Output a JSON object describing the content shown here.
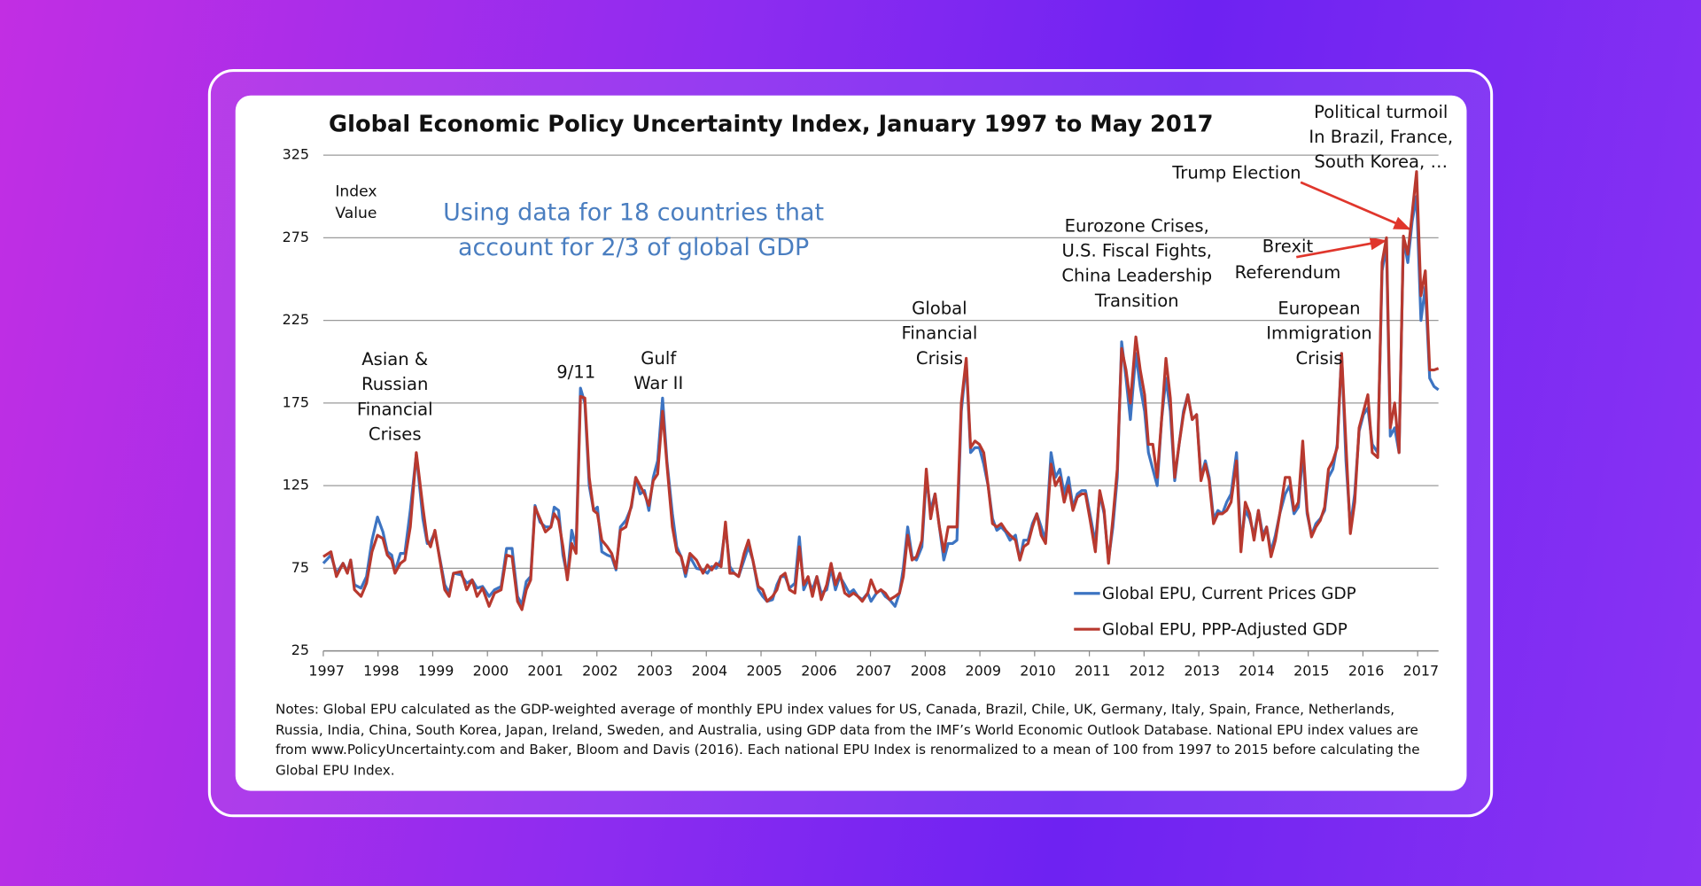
{
  "chart_data": {
    "type": "line",
    "title": "Global Economic Policy Uncertainty Index, January 1997 to May 2017",
    "subtitle": [
      "Using data for 18 countries that",
      "account for 2/3 of global GDP"
    ],
    "y_label": [
      "Index",
      "Value"
    ],
    "xlim": [
      1997,
      2017.38
    ],
    "xticks": [
      1997,
      1998,
      1999,
      2000,
      2001,
      2002,
      2003,
      2004,
      2005,
      2006,
      2007,
      2008,
      2009,
      2010,
      2011,
      2012,
      2013,
      2014,
      2015,
      2016,
      2017
    ],
    "ylim": [
      25,
      325
    ],
    "yticks": [
      25,
      75,
      125,
      175,
      225,
      275,
      325
    ],
    "grid": true,
    "legend": "lower right",
    "x": [
      1997.0,
      1997.14,
      1997.24,
      1997.36,
      1997.44,
      1997.5,
      1997.57,
      1997.69,
      1997.79,
      1997.89,
      1997.99,
      1998.09,
      1998.17,
      1998.25,
      1998.31,
      1998.41,
      1998.49,
      1998.59,
      1998.7,
      1998.82,
      1998.9,
      1998.96,
      1999.04,
      1999.22,
      1999.3,
      1999.38,
      1999.52,
      1999.62,
      1999.72,
      1999.81,
      1999.91,
      2000.03,
      2000.13,
      2000.25,
      2000.35,
      2000.45,
      2000.55,
      2000.63,
      2000.71,
      2000.79,
      2000.87,
      2000.96,
      2001.06,
      2001.16,
      2001.22,
      2001.3,
      2001.38,
      2001.46,
      2001.54,
      2001.62,
      2001.7,
      2001.78,
      2001.86,
      2001.94,
      2002.01,
      2002.09,
      2002.19,
      2002.27,
      2002.35,
      2002.43,
      2002.53,
      2002.63,
      2002.71,
      2002.79,
      2002.87,
      2002.95,
      2003.03,
      2003.11,
      2003.2,
      2003.28,
      2003.38,
      2003.46,
      2003.54,
      2003.62,
      2003.7,
      2003.82,
      2003.94,
      2004.02,
      2004.1,
      2004.18,
      2004.27,
      2004.35,
      2004.43,
      2004.51,
      2004.59,
      2004.69,
      2004.77,
      2004.85,
      2004.95,
      2005.03,
      2005.11,
      2005.21,
      2005.29,
      2005.36,
      2005.44,
      2005.52,
      2005.62,
      2005.7,
      2005.78,
      2005.86,
      2005.94,
      2006.02,
      2006.1,
      2006.2,
      2006.28,
      2006.36,
      2006.44,
      2006.53,
      2006.61,
      2006.69,
      2006.77,
      2006.85,
      2006.95,
      2007.01,
      2007.11,
      2007.19,
      2007.27,
      2007.35,
      2007.45,
      2007.53,
      2007.6,
      2007.68,
      2007.76,
      2007.84,
      2007.94,
      2008.02,
      2008.1,
      2008.18,
      2008.26,
      2008.34,
      2008.42,
      2008.5,
      2008.58,
      2008.66,
      2008.75,
      2008.83,
      2008.91,
      2008.99,
      2009.07,
      2009.15,
      2009.23,
      2009.31,
      2009.39,
      2009.47,
      2009.55,
      2009.65,
      2009.73,
      2009.8,
      2009.88,
      2009.96,
      2010.04,
      2010.12,
      2010.2,
      2010.3,
      2010.38,
      2010.46,
      2010.54,
      2010.62,
      2010.7,
      2010.78,
      2010.86,
      2010.93,
      2011.01,
      2011.11,
      2011.19,
      2011.27,
      2011.35,
      2011.43,
      2011.51,
      2011.59,
      2011.67,
      2011.75,
      2011.85,
      2011.93,
      2012.01,
      2012.08,
      2012.16,
      2012.24,
      2012.32,
      2012.4,
      2012.48,
      2012.56,
      2012.64,
      2012.72,
      2012.8,
      2012.88,
      2012.96,
      2013.04,
      2013.12,
      2013.19,
      2013.27,
      2013.35,
      2013.43,
      2013.51,
      2013.59,
      2013.69,
      2013.77,
      2013.85,
      2013.93,
      2014.01,
      2014.09,
      2014.17,
      2014.24,
      2014.32,
      2014.4,
      2014.48,
      2014.58,
      2014.66,
      2014.74,
      2014.82,
      2014.9,
      2014.98,
      2015.06,
      2015.14,
      2015.22,
      2015.3,
      2015.37,
      2015.45,
      2015.53,
      2015.61,
      2015.69,
      2015.77,
      2015.85,
      2015.93,
      2016.01,
      2016.09,
      2016.17,
      2016.27,
      2016.35,
      2016.43,
      2016.5,
      2016.58,
      2016.66,
      2016.74,
      2016.82,
      2016.9,
      2016.98,
      2017.06,
      2017.14,
      2017.22,
      2017.3,
      2017.38
    ],
    "series": [
      {
        "name": "Global EPU, Current Prices GDP",
        "color": "#3d74c2",
        "values": [
          78,
          83,
          72,
          78,
          73,
          80,
          65,
          63,
          70,
          92,
          106,
          97,
          85,
          83,
          73,
          84,
          84,
          110,
          144,
          105,
          90,
          91,
          97,
          65,
          60,
          72,
          71,
          66,
          68,
          63,
          64,
          58,
          62,
          64,
          87,
          87,
          58,
          53,
          67,
          70,
          113,
          103,
          100,
          100,
          112,
          110,
          83,
          70,
          98,
          88,
          184,
          175,
          125,
          110,
          112,
          85,
          83,
          82,
          74,
          100,
          104,
          112,
          130,
          120,
          122,
          110,
          130,
          140,
          178,
          140,
          108,
          88,
          82,
          70,
          82,
          75,
          74,
          72,
          76,
          75,
          80,
          100,
          76,
          72,
          70,
          80,
          88,
          80,
          62,
          58,
          55,
          56,
          65,
          70,
          70,
          63,
          66,
          94,
          62,
          68,
          62,
          70,
          60,
          62,
          75,
          62,
          70,
          65,
          60,
          62,
          58,
          56,
          60,
          55,
          60,
          62,
          58,
          56,
          52,
          60,
          75,
          100,
          82,
          80,
          88,
          130,
          110,
          120,
          100,
          80,
          90,
          90,
          92,
          170,
          200,
          145,
          148,
          148,
          138,
          125,
          105,
          98,
          100,
          97,
          92,
          95,
          80,
          92,
          92,
          102,
          108,
          100,
          92,
          145,
          130,
          135,
          120,
          130,
          112,
          120,
          122,
          122,
          108,
          90,
          120,
          108,
          80,
          100,
          130,
          212,
          190,
          165,
          205,
          185,
          170,
          145,
          135,
          125,
          165,
          190,
          170,
          128,
          150,
          170,
          180,
          165,
          168,
          130,
          140,
          130,
          105,
          110,
          108,
          115,
          120,
          145,
          90,
          110,
          105,
          95,
          110,
          95,
          100,
          85,
          95,
          108,
          120,
          125,
          108,
          112,
          145,
          108,
          95,
          102,
          105,
          110,
          130,
          135,
          150,
          205,
          140,
          100,
          120,
          158,
          168,
          172,
          150,
          145,
          255,
          270,
          155,
          160,
          145,
          275,
          260,
          285,
          300,
          225,
          245,
          190,
          185,
          183
        ]
      },
      {
        "name": "Global EPU, PPP-Adjusted GDP",
        "color": "#b8392f",
        "values": [
          82,
          85,
          70,
          78,
          72,
          80,
          62,
          58,
          66,
          85,
          95,
          93,
          83,
          80,
          72,
          78,
          80,
          100,
          145,
          112,
          92,
          88,
          98,
          62,
          58,
          72,
          73,
          62,
          68,
          58,
          63,
          52,
          60,
          62,
          83,
          82,
          55,
          50,
          62,
          68,
          112,
          105,
          97,
          100,
          108,
          104,
          88,
          68,
          90,
          84,
          179,
          178,
          130,
          110,
          108,
          92,
          88,
          84,
          75,
          98,
          100,
          113,
          130,
          125,
          120,
          113,
          128,
          132,
          170,
          138,
          100,
          85,
          82,
          72,
          84,
          80,
          72,
          77,
          74,
          78,
          76,
          103,
          72,
          72,
          70,
          84,
          92,
          80,
          64,
          62,
          55,
          58,
          62,
          70,
          72,
          62,
          60,
          88,
          65,
          70,
          58,
          70,
          56,
          65,
          78,
          65,
          72,
          60,
          58,
          60,
          58,
          55,
          60,
          68,
          60,
          62,
          60,
          56,
          58,
          60,
          70,
          95,
          80,
          82,
          92,
          135,
          105,
          120,
          100,
          85,
          100,
          100,
          100,
          175,
          202,
          148,
          152,
          150,
          145,
          125,
          102,
          100,
          102,
          98,
          95,
          92,
          80,
          88,
          90,
          100,
          108,
          95,
          90,
          138,
          125,
          130,
          115,
          125,
          110,
          118,
          120,
          120,
          105,
          85,
          122,
          110,
          78,
          105,
          135,
          208,
          195,
          175,
          215,
          195,
          180,
          150,
          150,
          130,
          165,
          202,
          178,
          130,
          150,
          168,
          180,
          165,
          168,
          128,
          138,
          128,
          102,
          108,
          108,
          110,
          115,
          140,
          85,
          115,
          108,
          92,
          110,
          92,
          100,
          82,
          92,
          108,
          130,
          130,
          110,
          115,
          152,
          110,
          94,
          100,
          104,
          112,
          135,
          140,
          148,
          205,
          150,
          96,
          115,
          160,
          170,
          180,
          145,
          142,
          260,
          275,
          160,
          175,
          145,
          276,
          265,
          290,
          315,
          240,
          255,
          195,
          195,
          196
        ]
      }
    ],
    "annotations": [
      {
        "text": [
          "Asian &",
          "Russian",
          "Financial",
          "Crises"
        ]
      },
      {
        "text": [
          "9/11"
        ]
      },
      {
        "text": [
          "Gulf",
          "War II"
        ]
      },
      {
        "text": [
          "Global",
          "Financial",
          "Crisis"
        ]
      },
      {
        "text": [
          "Eurozone Crises,",
          "U.S. Fiscal Fights,",
          "China Leadership",
          "Transition"
        ]
      },
      {
        "text": [
          "Brexit",
          "Referendum"
        ]
      },
      {
        "text": [
          "European",
          "Immigration",
          "Crisis"
        ]
      },
      {
        "text": [
          "Trump Election"
        ]
      },
      {
        "text": [
          "Political turmoil",
          "In Brazil, France,",
          "South Korea, …"
        ]
      }
    ],
    "notes": "Notes: Global EPU calculated as the GDP-weighted average of monthly EPU index values for US, Canada, Brazil, Chile, UK, Germany, Italy, Spain, France, Netherlands, Russia, India, China, South Korea, Japan, Ireland, Sweden, and Australia, using GDP data from the IMF’s World Economic Outlook Database. National EPU index values are from www.PolicyUncertainty.com and Baker, Bloom and Davis (2016). Each national EPU Index is renormalized to a mean of 100 from 1997 to 2015 before calculating the Global EPU Index."
  }
}
